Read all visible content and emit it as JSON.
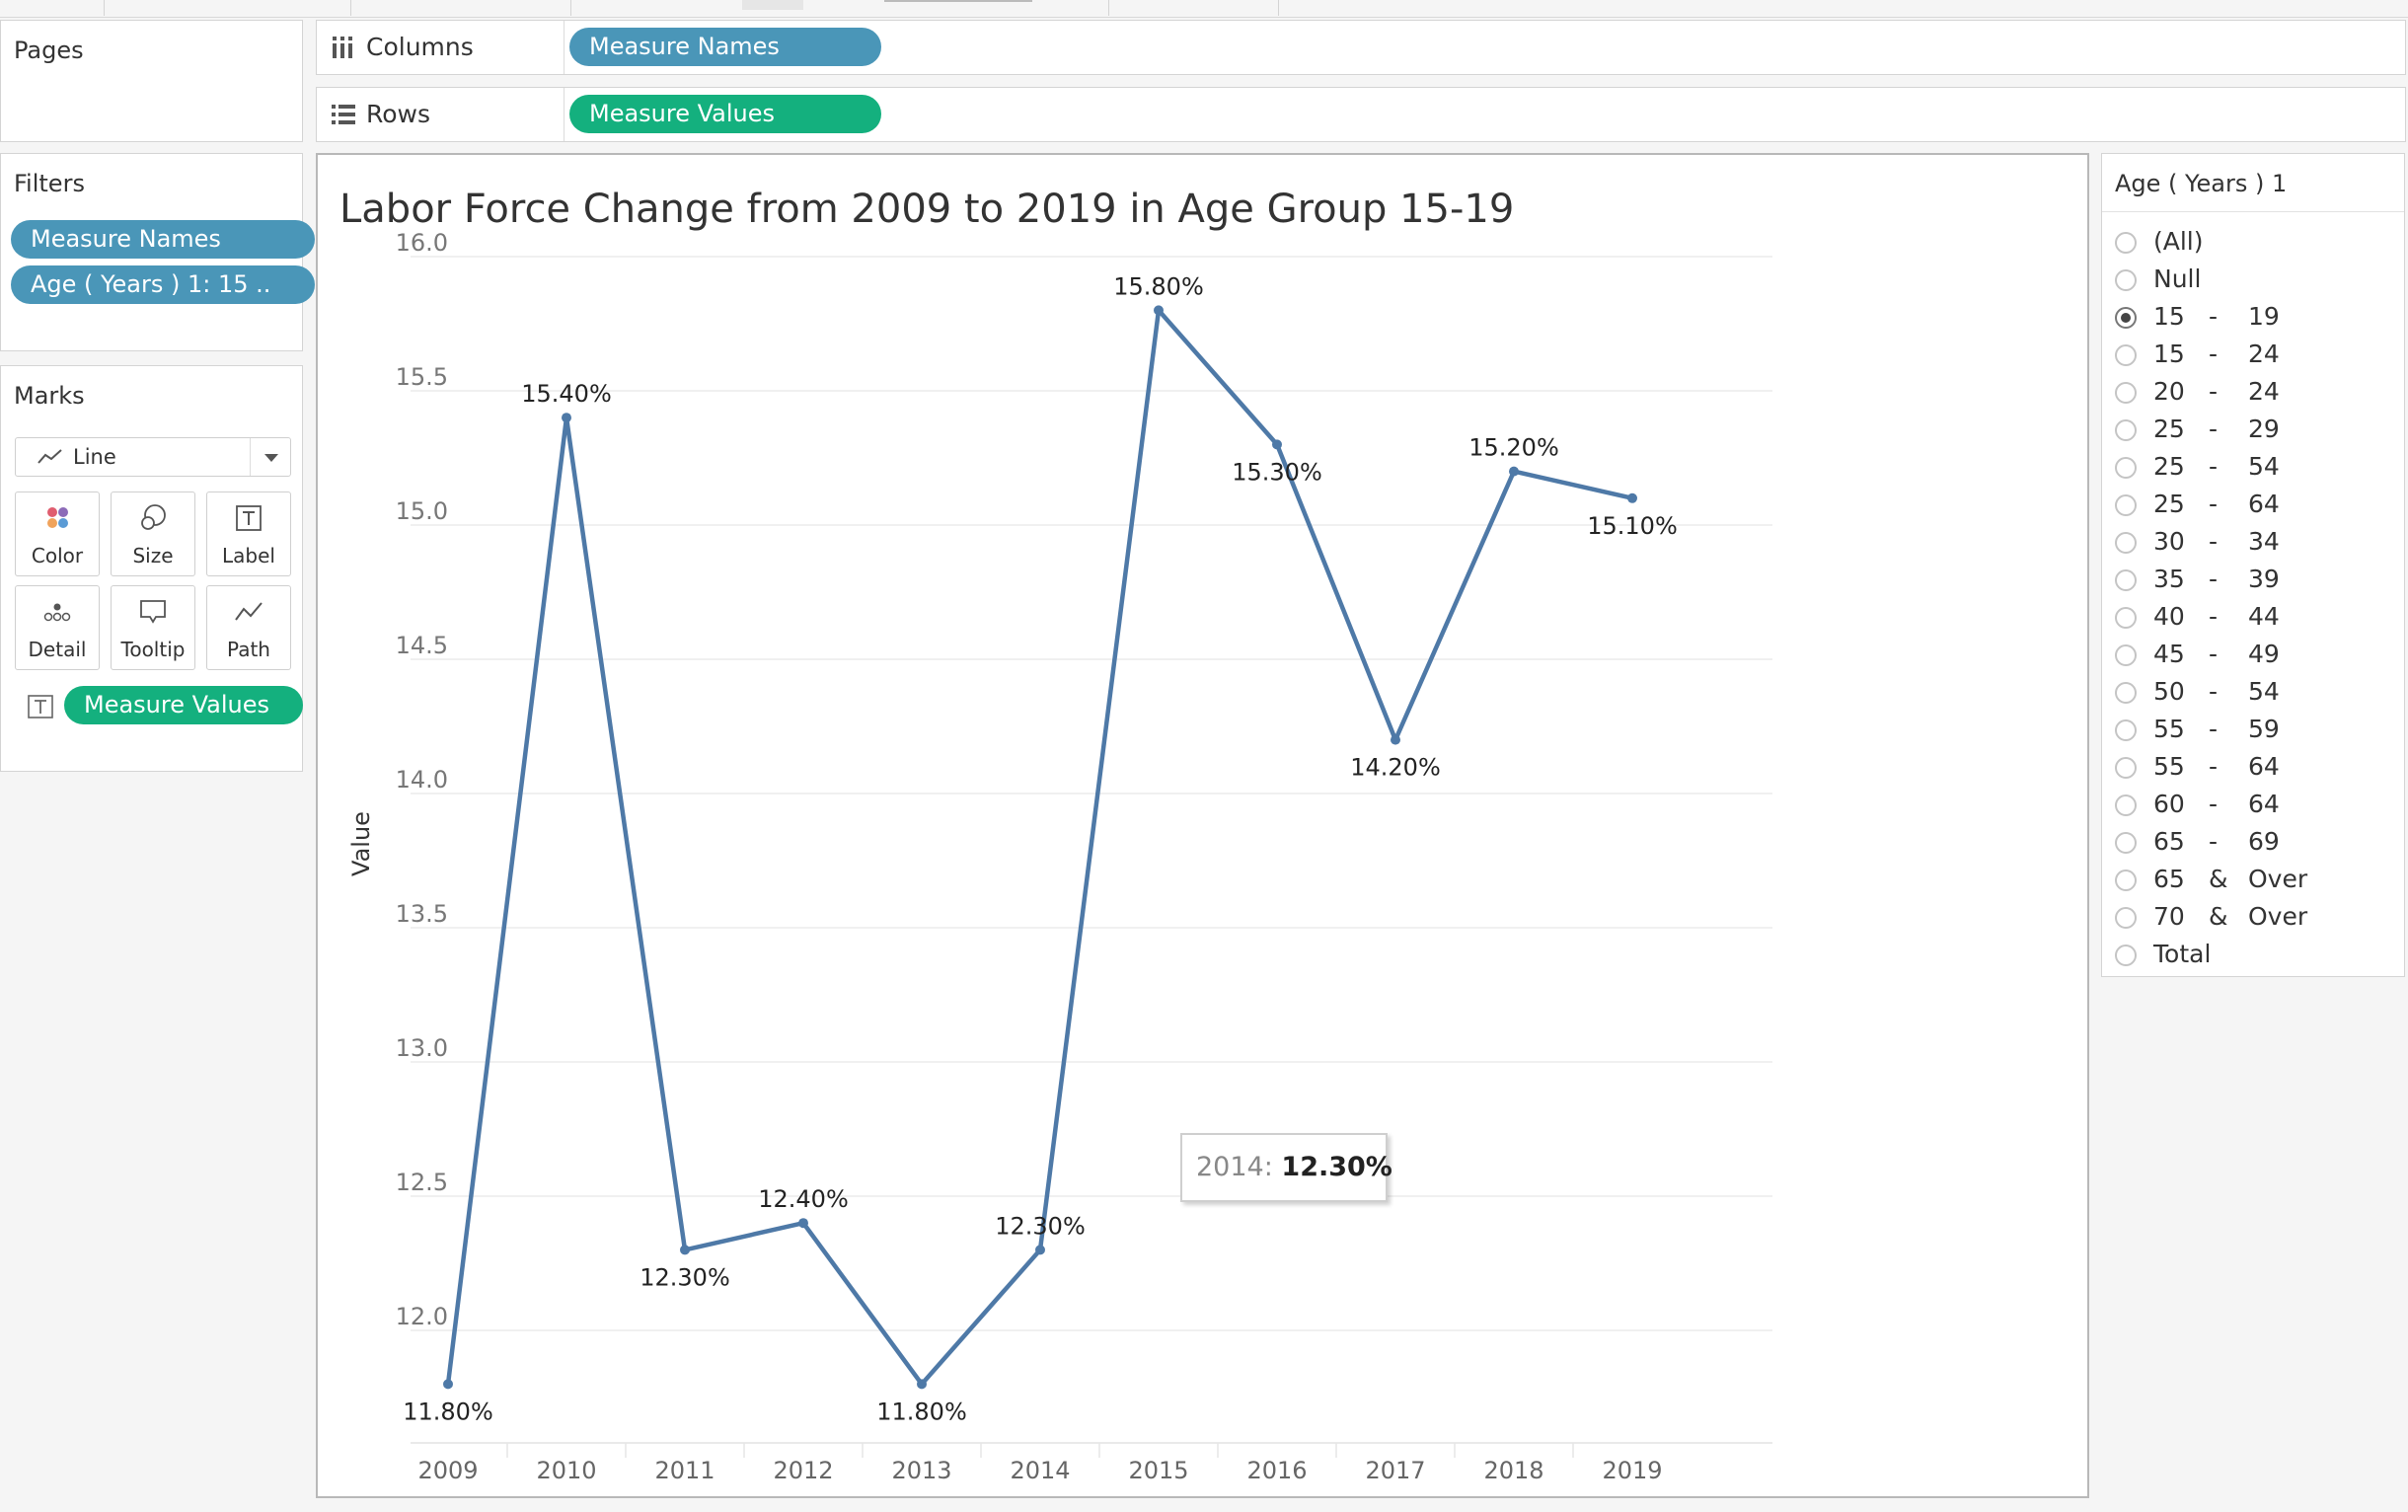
{
  "shelves": {
    "pages_label": "Pages",
    "columns_label": "Columns",
    "columns_pill": "Measure Names",
    "rows_label": "Rows",
    "rows_pill": "Measure Values"
  },
  "filters": {
    "title": "Filters",
    "pills": [
      "Measure Names",
      "Age ( Years ) 1: 15     .."
    ]
  },
  "marks": {
    "title": "Marks",
    "mark_type": "Line",
    "buttons": [
      "Color",
      "Size",
      "Label",
      "Detail",
      "Tooltip",
      "Path"
    ],
    "label_pill": "Measure Values"
  },
  "age_filter": {
    "title": "Age ( Years ) 1",
    "selected_index": 2,
    "options": [
      [
        "(All)",
        "",
        ""
      ],
      [
        "Null",
        "",
        ""
      ],
      [
        "15",
        "-",
        "19"
      ],
      [
        "15",
        "-",
        "24"
      ],
      [
        "20",
        "-",
        "24"
      ],
      [
        "25",
        "-",
        "29"
      ],
      [
        "25",
        "-",
        "54"
      ],
      [
        "25",
        "-",
        "64"
      ],
      [
        "30",
        "-",
        "34"
      ],
      [
        "35",
        "-",
        "39"
      ],
      [
        "40",
        "-",
        "44"
      ],
      [
        "45",
        "-",
        "49"
      ],
      [
        "50",
        "-",
        "54"
      ],
      [
        "55",
        "-",
        "59"
      ],
      [
        "55",
        "-",
        "64"
      ],
      [
        "60",
        "-",
        "64"
      ],
      [
        "65",
        "-",
        "69"
      ],
      [
        "65",
        "&",
        "Over"
      ],
      [
        "70",
        "&",
        "Over"
      ],
      [
        "Total",
        "",
        ""
      ]
    ]
  },
  "colors": {
    "line": "#4e79a7",
    "pill_blue": "#4a96b8",
    "pill_green": "#14b07e"
  },
  "tooltip": {
    "label": "2014:",
    "value": "12.30%"
  },
  "chart_data": {
    "type": "line",
    "title": "Labor Force Change from 2009 to 2019 in Age Group 15-19",
    "ylabel": "Value",
    "xlabel": "",
    "categories": [
      "2009",
      "2010",
      "2011",
      "2012",
      "2013",
      "2014",
      "2015",
      "2016",
      "2017",
      "2018",
      "2019"
    ],
    "values": [
      11.8,
      15.4,
      12.3,
      12.4,
      11.8,
      12.3,
      15.8,
      15.3,
      14.2,
      15.2,
      15.1
    ],
    "data_labels": [
      "11.80%",
      "15.40%",
      "12.30%",
      "12.40%",
      "11.80%",
      "12.30%",
      "15.80%",
      "15.30%",
      "14.20%",
      "15.20%",
      "15.10%"
    ],
    "yticks": [
      "12.0",
      "12.5",
      "13.0",
      "13.5",
      "14.0",
      "14.5",
      "15.0",
      "15.5",
      "16.0"
    ],
    "ylim": [
      11.75,
      16.05
    ],
    "grid": true
  }
}
